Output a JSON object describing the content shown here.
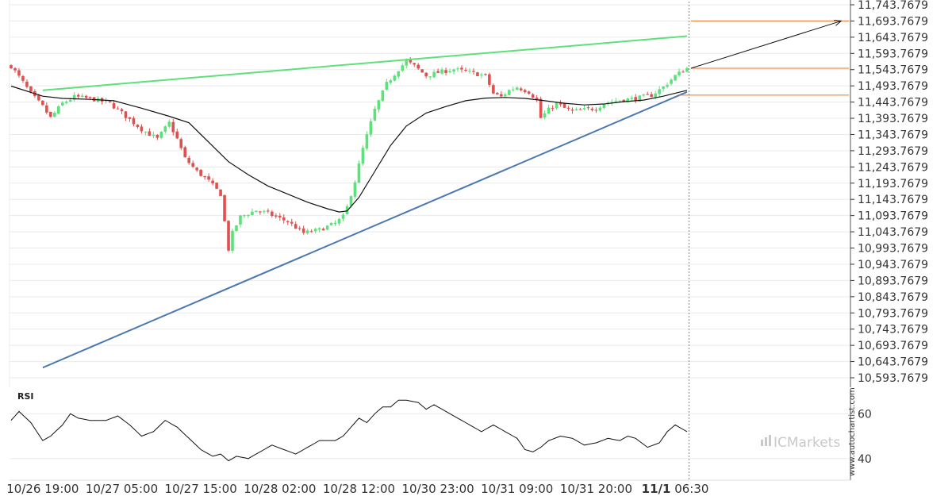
{
  "chart_data": {
    "type": "candlestick",
    "colors": {
      "up": "#5ee07a",
      "down": "#e0504e",
      "resistance": "#5ee07a",
      "support": "#4a78b0",
      "moving_average": "#111111",
      "level_lines": "#e8742a",
      "projection_arrow": "#111111",
      "rsi_line": "#111111",
      "grid": "#eaeaea",
      "axis": "#333333"
    },
    "y_axis": {
      "range": [
        10593.7679,
        11743.7679
      ],
      "tick_labels": [
        "11,743.7679",
        "11,693.7679",
        "11,643.7679",
        "11,593.7679",
        "11,543.7679",
        "11,493.7679",
        "11,443.7679",
        "11,393.7679",
        "11,343.7679",
        "11,293.7679",
        "11,243.7679",
        "11,193.7679",
        "11,143.7679",
        "11,093.7679",
        "11,043.7679",
        "10,993.7679",
        "10,943.7679",
        "10,893.7679",
        "10,843.7679",
        "10,793.7679",
        "10,743.7679",
        "10,693.7679",
        "10,643.7679",
        "10,593.7679"
      ],
      "tick_values": [
        11743.7679,
        11693.7679,
        11643.7679,
        11593.7679,
        11543.7679,
        11493.7679,
        11443.7679,
        11393.7679,
        11343.7679,
        11293.7679,
        11243.7679,
        11193.7679,
        11143.7679,
        11093.7679,
        11043.7679,
        10993.7679,
        10943.7679,
        10893.7679,
        10843.7679,
        10793.7679,
        10743.7679,
        10693.7679,
        10643.7679,
        10593.7679
      ]
    },
    "x_axis": {
      "bar_count": 172,
      "tick_labels": [
        {
          "label": "10/26 19:00",
          "bar": 8,
          "bold": false
        },
        {
          "label": "10/27 05:00",
          "bar": 28,
          "bold": false
        },
        {
          "label": "10/27 15:00",
          "bar": 48,
          "bold": false
        },
        {
          "label": "10/28 02:00",
          "bar": 68,
          "bold": false
        },
        {
          "label": "10/28 12:00",
          "bar": 88,
          "bold": false
        },
        {
          "label": "10/30 23:00",
          "bar": 108,
          "bold": false
        },
        {
          "label": "10/31 09:00",
          "bar": 128,
          "bold": false
        },
        {
          "label": "10/31 20:00",
          "bar": 148,
          "bold": false
        },
        {
          "label": "11/1 06:30",
          "bar": 168,
          "bold_part": "11/1"
        }
      ]
    },
    "price_anchors": [
      [
        0,
        11555
      ],
      [
        3,
        11505
      ],
      [
        5,
        11470
      ],
      [
        8,
        11430
      ],
      [
        10,
        11395
      ],
      [
        13,
        11440
      ],
      [
        16,
        11460
      ],
      [
        20,
        11455
      ],
      [
        25,
        11440
      ],
      [
        29,
        11400
      ],
      [
        33,
        11360
      ],
      [
        37,
        11330
      ],
      [
        40,
        11380
      ],
      [
        42,
        11330
      ],
      [
        44,
        11270
      ],
      [
        47,
        11230
      ],
      [
        50,
        11200
      ],
      [
        53,
        11160
      ],
      [
        55,
        10990
      ],
      [
        56,
        11040
      ],
      [
        58,
        11090
      ],
      [
        62,
        11110
      ],
      [
        65,
        11100
      ],
      [
        70,
        11075
      ],
      [
        74,
        11040
      ],
      [
        78,
        11050
      ],
      [
        82,
        11070
      ],
      [
        84,
        11090
      ],
      [
        85,
        11120
      ],
      [
        87,
        11200
      ],
      [
        89,
        11300
      ],
      [
        92,
        11420
      ],
      [
        95,
        11500
      ],
      [
        98,
        11545
      ],
      [
        100,
        11570
      ],
      [
        102,
        11555
      ],
      [
        105,
        11525
      ],
      [
        108,
        11535
      ],
      [
        112,
        11545
      ],
      [
        116,
        11535
      ],
      [
        120,
        11525
      ],
      [
        122,
        11470
      ],
      [
        124,
        11460
      ],
      [
        126,
        11480
      ],
      [
        128,
        11490
      ],
      [
        131,
        11475
      ],
      [
        133,
        11450
      ],
      [
        134,
        11395
      ],
      [
        136,
        11420
      ],
      [
        138,
        11440
      ],
      [
        140,
        11425
      ],
      [
        142,
        11415
      ],
      [
        145,
        11420
      ],
      [
        148,
        11425
      ],
      [
        150,
        11440
      ],
      [
        154,
        11450
      ],
      [
        158,
        11455
      ],
      [
        162,
        11465
      ],
      [
        165,
        11490
      ],
      [
        168,
        11525
      ],
      [
        171,
        11548
      ]
    ],
    "moving_average": [
      [
        0,
        11493
      ],
      [
        8,
        11462
      ],
      [
        13,
        11455
      ],
      [
        20,
        11452
      ],
      [
        26,
        11448
      ],
      [
        33,
        11425
      ],
      [
        40,
        11400
      ],
      [
        45,
        11380
      ],
      [
        50,
        11320
      ],
      [
        55,
        11260
      ],
      [
        60,
        11220
      ],
      [
        65,
        11185
      ],
      [
        70,
        11160
      ],
      [
        75,
        11135
      ],
      [
        80,
        11115
      ],
      [
        83,
        11105
      ],
      [
        85,
        11108
      ],
      [
        88,
        11150
      ],
      [
        92,
        11230
      ],
      [
        96,
        11310
      ],
      [
        100,
        11370
      ],
      [
        105,
        11410
      ],
      [
        110,
        11430
      ],
      [
        115,
        11448
      ],
      [
        120,
        11456
      ],
      [
        125,
        11458
      ],
      [
        130,
        11455
      ],
      [
        135,
        11448
      ],
      [
        140,
        11440
      ],
      [
        145,
        11435
      ],
      [
        150,
        11438
      ],
      [
        155,
        11445
      ],
      [
        160,
        11450
      ],
      [
        165,
        11462
      ],
      [
        171,
        11480
      ]
    ],
    "resistance_line": {
      "from": [
        8,
        11480
      ],
      "to": [
        171,
        11647
      ]
    },
    "support_line": {
      "from": [
        8,
        10625
      ],
      "to": [
        171,
        11475
      ]
    },
    "level_lines": [
      {
        "value": 11693.7679,
        "from_bar": 172,
        "to_bar": 212
      },
      {
        "value": 11548.0,
        "from_bar": 172,
        "to_bar": 212
      },
      {
        "value": 11465.0,
        "from_bar": 169,
        "to_bar": 212
      }
    ],
    "projection_arrow": {
      "from": [
        172,
        11548
      ],
      "to": [
        210,
        11693.7679
      ]
    },
    "vertical_marker_bar": 171.5,
    "rsi": {
      "label": "RSI",
      "range": [
        30,
        70
      ],
      "tick_labels": [
        "60",
        "40"
      ],
      "tick_values": [
        60,
        40
      ],
      "anchors": [
        [
          0,
          57
        ],
        [
          2,
          61
        ],
        [
          5,
          56
        ],
        [
          8,
          48
        ],
        [
          10,
          50
        ],
        [
          13,
          55
        ],
        [
          15,
          60
        ],
        [
          17,
          58
        ],
        [
          20,
          57
        ],
        [
          24,
          57
        ],
        [
          27,
          59
        ],
        [
          30,
          55
        ],
        [
          33,
          50
        ],
        [
          36,
          52
        ],
        [
          39,
          57
        ],
        [
          42,
          54
        ],
        [
          45,
          49
        ],
        [
          48,
          44
        ],
        [
          51,
          41
        ],
        [
          53,
          42
        ],
        [
          55,
          39
        ],
        [
          57,
          41
        ],
        [
          60,
          40
        ],
        [
          63,
          43
        ],
        [
          66,
          46
        ],
        [
          69,
          44
        ],
        [
          72,
          42
        ],
        [
          75,
          45
        ],
        [
          78,
          48
        ],
        [
          82,
          48
        ],
        [
          84,
          50
        ],
        [
          86,
          54
        ],
        [
          88,
          58
        ],
        [
          90,
          56
        ],
        [
          92,
          60
        ],
        [
          94,
          63
        ],
        [
          96,
          63
        ],
        [
          98,
          66
        ],
        [
          100,
          66
        ],
        [
          103,
          65
        ],
        [
          105,
          62
        ],
        [
          107,
          64
        ],
        [
          110,
          61
        ],
        [
          113,
          58
        ],
        [
          116,
          55
        ],
        [
          119,
          52
        ],
        [
          122,
          55
        ],
        [
          125,
          52
        ],
        [
          128,
          49
        ],
        [
          130,
          44
        ],
        [
          132,
          43
        ],
        [
          134,
          45
        ],
        [
          136,
          48
        ],
        [
          139,
          50
        ],
        [
          142,
          49
        ],
        [
          145,
          46
        ],
        [
          148,
          47
        ],
        [
          151,
          49
        ],
        [
          154,
          48
        ],
        [
          156,
          50
        ],
        [
          158,
          49
        ],
        [
          161,
          45
        ],
        [
          164,
          47
        ],
        [
          166,
          52
        ],
        [
          168,
          55
        ],
        [
          170,
          53
        ],
        [
          171,
          52
        ]
      ]
    }
  },
  "brand": {
    "logo_text": "ICMarkets",
    "watermark": "www.autochartist.com"
  }
}
